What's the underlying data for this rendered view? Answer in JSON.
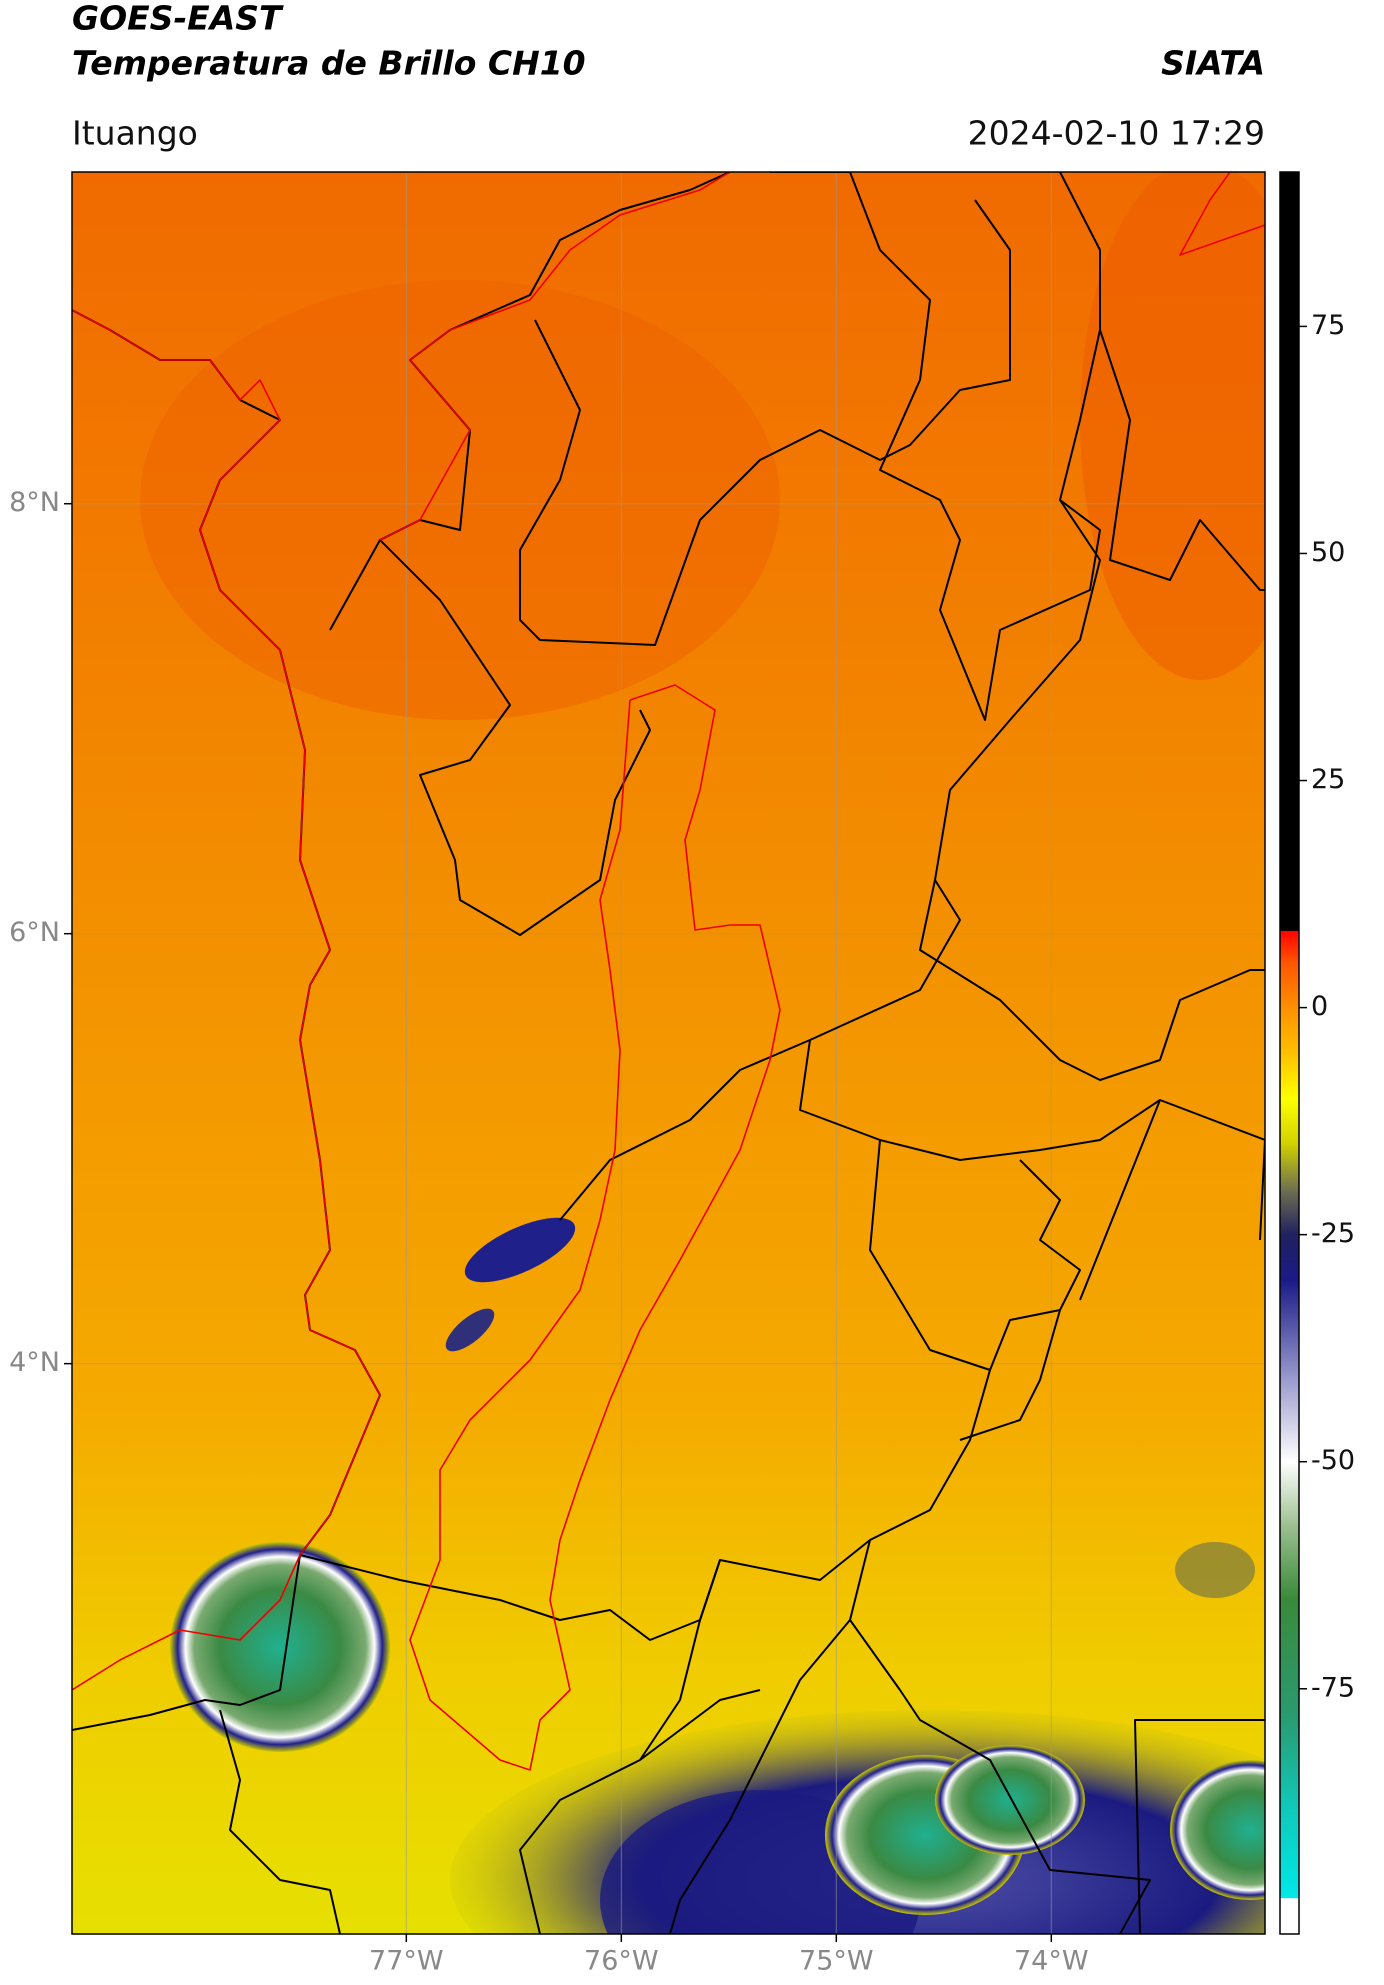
{
  "chart_data": {
    "type": "map",
    "title": "GOES-EAST",
    "subtitle": "Temperatura de Brillo CH10",
    "source": "SIATA",
    "location": "Ituango",
    "timestamp": "2024-02-10 17:29",
    "xlim": [
      -78.555,
      -73.006
    ],
    "ylim": [
      1.347,
      9.543
    ],
    "xticks": [
      {
        "value": -77,
        "label": "77°W"
      },
      {
        "value": -76,
        "label": "76°W"
      },
      {
        "value": -75,
        "label": "75°W"
      },
      {
        "value": -74,
        "label": "74°W"
      }
    ],
    "yticks": [
      {
        "value": 4,
        "label": "4°N"
      },
      {
        "value": 6,
        "label": "6°N"
      },
      {
        "value": 8,
        "label": "8°N"
      }
    ],
    "grid": true,
    "colorbar": {
      "lim": [
        -102,
        92
      ],
      "ticks": [
        -75,
        -50,
        -25,
        0,
        25,
        50,
        75
      ],
      "colormap": [
        {
          "value": -102,
          "color": "#ffffff"
        },
        {
          "value": -98,
          "color": "#ffffff"
        },
        {
          "value": -98,
          "color": "#00e8e8"
        },
        {
          "value": -88,
          "color": "#10c8b8"
        },
        {
          "value": -78,
          "color": "#2a9a70"
        },
        {
          "value": -65,
          "color": "#3a8a3a"
        },
        {
          "value": -57,
          "color": "#9cc090"
        },
        {
          "value": -50,
          "color": "#ffffff"
        },
        {
          "value": -40,
          "color": "#9090c8"
        },
        {
          "value": -30,
          "color": "#1a1a88"
        },
        {
          "value": -25,
          "color": "#202060"
        },
        {
          "value": -20,
          "color": "#707050"
        },
        {
          "value": -15,
          "color": "#d0d000"
        },
        {
          "value": -10,
          "color": "#ffff00"
        },
        {
          "value": -5,
          "color": "#ffc000"
        },
        {
          "value": 0,
          "color": "#ff9000"
        },
        {
          "value": 5,
          "color": "#ff5500"
        },
        {
          "value": 8.5,
          "color": "#ff0000"
        },
        {
          "value": 8.5,
          "color": "#000000"
        },
        {
          "value": 92,
          "color": "#000000"
        }
      ]
    }
  }
}
